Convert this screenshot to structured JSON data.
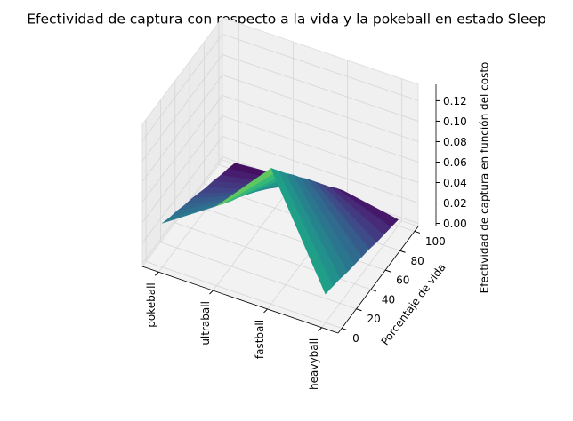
{
  "chart_data": {
    "type": "surface3d",
    "title": "Efectividad de captura con respecto a la vida y la pokeball en estado Sleep",
    "categories": [
      "pokeball",
      "ultraball",
      "fastball",
      "heavyball"
    ],
    "y": [
      0,
      10,
      20,
      30,
      40,
      50,
      60,
      70,
      80,
      90,
      100
    ],
    "z": [
      [
        0.04,
        0.036,
        0.033,
        0.029,
        0.026,
        0.022,
        0.018,
        0.015,
        0.011,
        0.008,
        0.004
      ],
      [
        0.075,
        0.068,
        0.061,
        0.055,
        0.048,
        0.041,
        0.034,
        0.028,
        0.021,
        0.014,
        0.008
      ],
      [
        0.13,
        0.118,
        0.106,
        0.095,
        0.083,
        0.072,
        0.06,
        0.048,
        0.036,
        0.025,
        0.013
      ],
      [
        0.025,
        0.023,
        0.021,
        0.018,
        0.016,
        0.014,
        0.012,
        0.009,
        0.007,
        0.005,
        0.003
      ]
    ],
    "ylabel": "Porcentaje de vida",
    "zlabel": "Efectividad de captura en función del costo",
    "ylim": [
      -5,
      105
    ],
    "yticks": [
      0,
      20,
      40,
      60,
      80,
      100
    ],
    "zlim": [
      -0.003,
      0.136
    ],
    "zticks": [
      {
        "value": 0,
        "label": "0.00"
      },
      0.02,
      0.04,
      0.06,
      0.08,
      {
        "value": 0.1,
        "label": "0.10"
      },
      0.12
    ],
    "colormap": "viridis",
    "grid": true
  }
}
